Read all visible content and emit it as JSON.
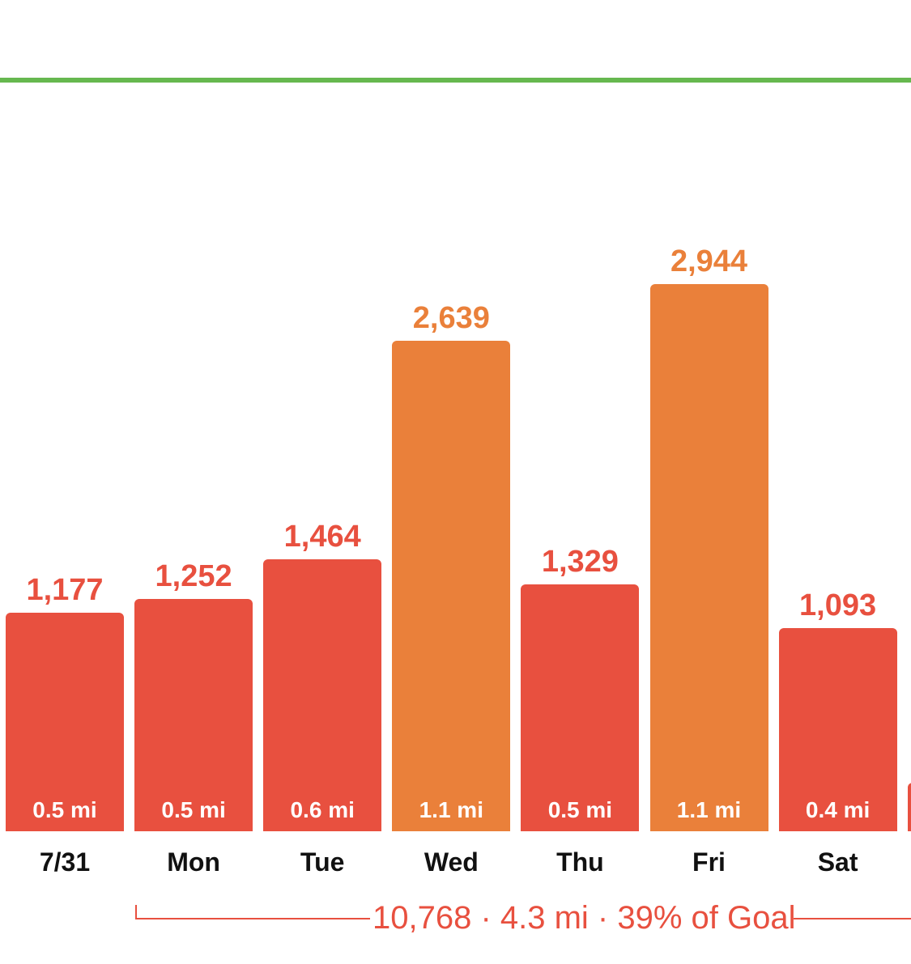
{
  "colors": {
    "goal_line": "#66b84f",
    "below_goal": "#e8503f",
    "high": "#ea803a",
    "day_text": "#111111",
    "summary_text": "#e8503f"
  },
  "chart_data": {
    "type": "bar",
    "categories": [
      "7/31",
      "Mon",
      "Tue",
      "Wed",
      "Thu",
      "Fri",
      "Sat",
      ""
    ],
    "values": [
      1177,
      1252,
      1464,
      2639,
      1329,
      2944,
      1093,
      null
    ],
    "value_labels": [
      "1,177",
      "1,252",
      "1,464",
      "2,639",
      "1,329",
      "2,944",
      "1,093",
      ""
    ],
    "distance_labels": [
      "0.5 mi",
      "0.5 mi",
      "0.6 mi",
      "1.1 mi",
      "0.5 mi",
      "1.1 mi",
      "0.4 mi",
      ""
    ],
    "highlighted": [
      false,
      false,
      false,
      true,
      false,
      true,
      false,
      false
    ],
    "partial_last_bar_value": 280,
    "ylim": [
      0,
      3300
    ],
    "grid": false,
    "title": "",
    "xlabel": "",
    "ylabel": ""
  },
  "summary": {
    "text": "10,768 · 4.3 mi · 39% of Goal"
  }
}
